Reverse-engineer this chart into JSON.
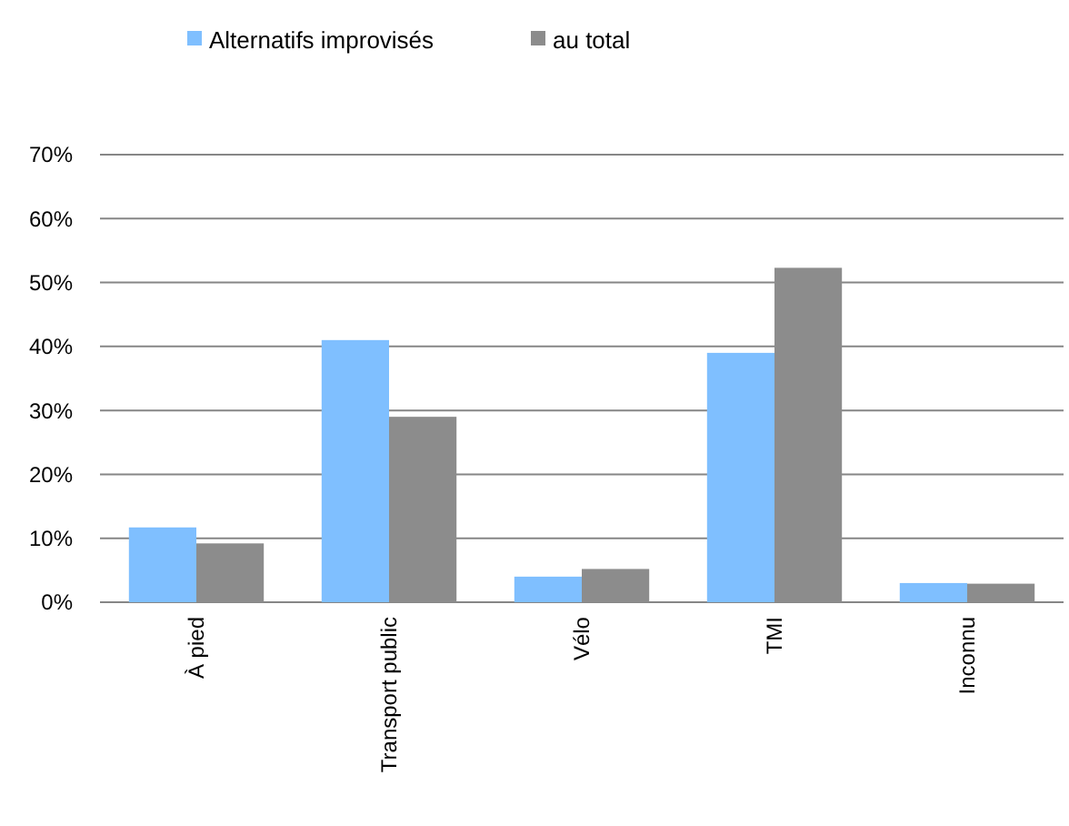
{
  "chart_data": {
    "type": "bar",
    "categories": [
      "À pied",
      "Transport public",
      "Vélo",
      "TMI",
      "Inconnu"
    ],
    "series": [
      {
        "name": "Alternatifs improvisés",
        "color": "#7fbfff",
        "values": [
          11.7,
          41,
          4,
          39,
          3
        ]
      },
      {
        "name": "au total",
        "color": "#8c8c8c",
        "values": [
          9.2,
          29,
          5.2,
          52.3,
          2.9
        ]
      }
    ],
    "ylim": [
      0,
      70
    ],
    "yticks": [
      {
        "value": 0,
        "label": "0%"
      },
      {
        "value": 10,
        "label": "10%"
      },
      {
        "value": 20,
        "label": "20%"
      },
      {
        "value": 30,
        "label": "30%"
      },
      {
        "value": 40,
        "label": "40%"
      },
      {
        "value": 50,
        "label": "50%"
      },
      {
        "value": 60,
        "label": "60%"
      },
      {
        "value": 70,
        "label": "70%"
      }
    ],
    "grid": "y",
    "legend": "top"
  }
}
